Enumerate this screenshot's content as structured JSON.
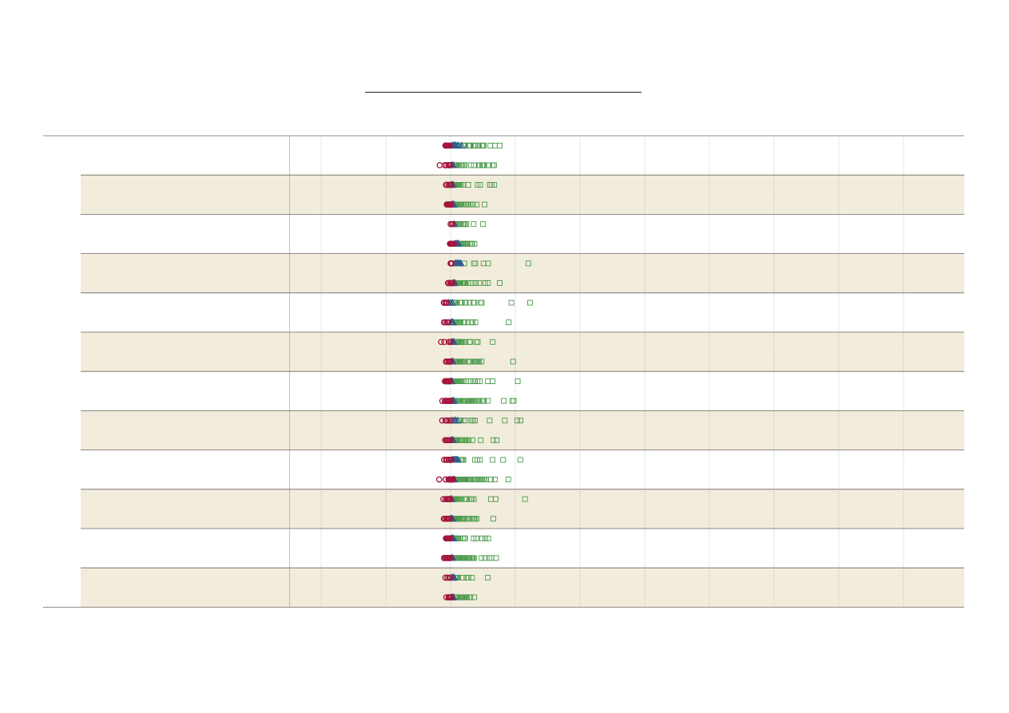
{
  "chart_data": {
    "type": "scatter",
    "title": "",
    "xlabel": "",
    "ylabel": "",
    "grid": true,
    "legend": "none",
    "colors": {
      "circle": "#a3173d",
      "triangle": "#2d5f8c",
      "square": "#4c9a4c",
      "band": "#f2ecdc",
      "rule": "#6b655e",
      "grid": "#9a9a9a"
    },
    "groups": [
      {
        "shaded": false,
        "rows": [
          {
            "circles": [
              -4.0,
              -3.5,
              -3.2,
              -3.0,
              -2.6,
              -2.2,
              -1.7,
              -1.2,
              -0.6
            ],
            "triangles": [
              1.2,
              1.8,
              2.3,
              2.9,
              3.4,
              3.9,
              4.2,
              5.4,
              6.5,
              8.6
            ],
            "squares": [
              9.5,
              10.2,
              10.9,
              13.9,
              14.6,
              15.2,
              17.8,
              18.6,
              19.5,
              21.4,
              24.3,
              24.8,
              25.6,
              30.7,
              34.2,
              38.0
            ]
          },
          {
            "circles": [
              -8.4,
              -4.5,
              -3.2,
              -1.6,
              -1.1,
              -0.6,
              0.0
            ],
            "triangles": [
              1.1,
              1.5,
              2.0
            ],
            "squares": [
              3.0,
              3.4,
              3.8,
              4.3,
              4.7,
              5.4,
              6.2,
              8.3,
              9.1,
              10.1,
              11.1,
              15.9,
              18.0,
              22.0,
              22.6,
              24.4,
              25.1,
              26.1,
              29.2,
              32.5,
              33.6
            ]
          }
        ]
      },
      {
        "shaded": true,
        "rows": [
          {
            "circles": [
              -3.5,
              -3.0,
              -1.5,
              -0.6,
              0.0,
              0.6
            ],
            "triangles": [
              1.0,
              1.5,
              2.0
            ],
            "squares": [
              3.0,
              3.5,
              4.0,
              4.6,
              5.2,
              5.8,
              6.4,
              7.0,
              8.0,
              9.6,
              13.7,
              20.9,
              22.9,
              30.3,
              31.7,
              33.7
            ]
          },
          {
            "circles": [
              -3.0,
              -2.2,
              -1.6,
              -0.9,
              -0.4,
              0.0,
              0.5
            ],
            "triangles": [
              1.1,
              1.6,
              2.0,
              2.6
            ],
            "squares": [
              3.4,
              3.9,
              4.5,
              5.1,
              5.7,
              6.4,
              7.0,
              7.7,
              8.4,
              9.3,
              10.4,
              12.0,
              13.0,
              13.9,
              15.3,
              17.4,
              20.2,
              26.2
            ]
          }
        ]
      },
      {
        "shaded": false,
        "rows": [
          {
            "circles": [
              0.0,
              1.0,
              2.0
            ],
            "triangles": [
              2.8
            ],
            "squares": [
              3.6,
              4.1,
              4.8,
              5.5,
              6.1,
              6.8,
              7.5,
              9.6,
              10.4,
              11.2,
              12.2,
              17.8,
              25.1
            ]
          },
          {
            "circles": [
              -0.5,
              0.0,
              0.7,
              1.2,
              1.8,
              2.3,
              2.7
            ],
            "triangles": [
              3.5,
              4.0,
              4.5,
              5.1,
              5.7,
              6.2
            ],
            "squares": [
              6.8,
              7.4,
              8.0,
              8.8,
              9.6,
              10.3,
              11.0,
              11.8,
              12.5,
              13.2,
              15.0,
              16.2,
              16.7,
              18.5
            ]
          }
        ]
      },
      {
        "shaded": true,
        "rows": [
          {
            "circles": [
              0.0,
              0.5,
              1.0
            ],
            "triangles": [
              3.3,
              4.0,
              4.7,
              5.4,
              6.1,
              6.8,
              7.5,
              8.0
            ],
            "squares": [
              10.7,
              18.0,
              19.2,
              25.5,
              29.0,
              60.1
            ]
          },
          {
            "circles": [
              -2.0,
              -1.5,
              -0.2,
              0.4,
              1.2,
              1.7
            ],
            "triangles": [
              2.2,
              2.8,
              3.4
            ],
            "squares": [
              4.0,
              4.5,
              5.1,
              5.7,
              6.2,
              6.8,
              7.4,
              8.8,
              9.5,
              10.2,
              10.8,
              11.5,
              13.5,
              15.5,
              17.2,
              19.5,
              22.2,
              26.7,
              28.9,
              38.0
            ]
          }
        ]
      },
      {
        "shaded": false,
        "rows": [
          {
            "circles": [
              -5.2,
              -4.8,
              -3.6,
              -3.2,
              -2.8
            ],
            "triangles": [
              -1.5,
              0.0,
              1.5
            ],
            "squares": [
              2.0,
              2.6,
              3.2,
              3.8,
              4.4,
              7.4,
              8.1,
              8.8,
              11.0,
              11.8,
              14.7,
              17.6,
              18.4,
              23.2,
              24.1,
              47.0,
              61.4
            ]
          },
          {
            "circles": [
              -5.1,
              -4.1,
              -2.7,
              -2.2,
              -1.6
            ],
            "triangles": [
              0.3,
              0.9,
              1.4,
              1.9
            ],
            "squares": [
              2.9,
              3.6,
              4.2,
              4.8,
              5.5,
              6.1,
              7.2,
              7.8,
              10.1,
              10.8,
              13.5,
              16.1,
              17.1,
              19.2,
              44.9
            ]
          }
        ]
      },
      {
        "shaded": true,
        "rows": [
          {
            "circles": [
              -7.3,
              -4.8,
              -1.4,
              0.0,
              0.4
            ],
            "triangles": [
              1.0,
              1.5,
              2.0,
              2.6
            ],
            "squares": [
              4.5,
              5.1,
              5.8,
              6.4,
              7.0,
              7.7,
              8.4,
              9.1,
              10.1,
              11.4,
              14.7,
              15.2,
              19.9,
              21.0,
              32.5
            ]
          },
          {
            "circles": [
              -3.6,
              -2.6,
              -1.4,
              -0.6,
              0.0
            ],
            "triangles": [
              0.8,
              1.4,
              1.9
            ],
            "squares": [
              3.9,
              4.5,
              5.1,
              5.8,
              6.4,
              7.1,
              7.7,
              8.5,
              9.2,
              10.2,
              13.5,
              14.3,
              15.1,
              18.5,
              19.1,
              19.8,
              20.5,
              21.2,
              22.1,
              23.9,
              48.3
            ]
          }
        ]
      },
      {
        "shaded": false,
        "rows": [
          {
            "circles": [
              -4.4,
              -3.6,
              -3.0,
              -2.4,
              -1.8,
              -1.2,
              -0.6
            ],
            "triangles": [
              0.5,
              1.1
            ],
            "squares": [
              1.8,
              2.4,
              3.0,
              3.6,
              4.2,
              4.8,
              5.4,
              6.0,
              6.6,
              7.4,
              8.1,
              9.3,
              10.4,
              12.0,
              15.6,
              17.4,
              18.6,
              20.8,
              22.7,
              28.8,
              32.5,
              51.9
            ]
          },
          {
            "circles": [
              -6.4,
              -4.5,
              -3.6,
              -3.0,
              -2.2,
              -1.4,
              -0.6,
              0.0
            ],
            "triangles": [
              0.9,
              1.5,
              2.0,
              2.6
            ],
            "squares": [
              3.2,
              3.8,
              4.4,
              5.0,
              5.6,
              6.2,
              6.8,
              7.4,
              9.5,
              10.2,
              10.9,
              11.6,
              12.4,
              13.2,
              13.9,
              14.7,
              15.5,
              16.3,
              17.1,
              17.9,
              18.6,
              19.5,
              20.8,
              22.4,
              24.2,
              25.0,
              25.8,
              28.9,
              41.1,
              47.6,
              48.8
            ]
          }
        ]
      },
      {
        "shaded": true,
        "rows": [
          {
            "circles": [
              -6.5,
              -3.9,
              -3.4,
              -2.9,
              -1.4,
              0.0
            ],
            "triangles": [
              0.9,
              2.3,
              3.4,
              3.9,
              5.4
            ],
            "squares": [
              6.2,
              6.8,
              7.3,
              9.9,
              11.6,
              16.2,
              17.5,
              18.8,
              30.2,
              41.9,
              51.6,
              54.1
            ]
          },
          {
            "circles": [
              -4.2,
              -3.8,
              -2.8,
              -2.2,
              -1.6,
              -0.6,
              0.0
            ],
            "triangles": [
              0.5,
              1.0,
              1.5,
              2.1
            ],
            "squares": [
              2.7,
              3.2,
              3.8,
              4.3,
              4.9,
              5.4,
              6.0,
              7.2,
              9.0,
              9.8,
              11.0,
              11.6,
              12.3,
              14.0,
              16.9,
              23.3,
              33.1,
              35.6
            ]
          }
        ]
      },
      {
        "shaded": false,
        "rows": [
          {
            "circles": [
              -5.0,
              -3.4,
              -2.8,
              -1.5,
              -1.0,
              0.0,
              0.6
            ],
            "triangles": [
              1.1,
              1.7,
              2.3,
              2.9,
              3.4,
              4.0,
              4.6,
              5.1,
              5.6
            ],
            "squares": [
              7.9,
              8.5,
              9.2,
              10.0,
              18.8,
              20.8,
              22.7,
              32.5,
              40.6,
              53.9
            ]
          },
          {
            "circles": [
              -8.8,
              -3.8,
              -1.6,
              -1.2,
              -0.8,
              0.0,
              0.5,
              1.0,
              1.5,
              2.0
            ],
            "triangles": [
              2.5,
              3.0
            ],
            "squares": [
              3.6,
              4.2,
              4.8,
              5.4,
              6.0,
              6.6,
              7.2,
              7.8,
              8.4,
              9.0,
              9.6,
              10.3,
              11.0,
              11.6,
              12.3,
              13.0,
              13.8,
              14.5,
              15.2,
              16.0,
              18.2,
              18.8,
              20.3,
              21.1,
              22.6,
              23.4,
              24.4,
              25.4,
              26.3,
              27.4,
              31.2,
              34.2,
              44.6
            ]
          }
        ]
      },
      {
        "shaded": true,
        "rows": [
          {
            "circles": [
              -5.6,
              -3.9,
              -2.8,
              -2.0,
              -1.4,
              -0.8,
              0.0
            ],
            "triangles": [
              0.5,
              1.0
            ],
            "squares": [
              1.6,
              2.2,
              2.8,
              3.4,
              4.0,
              4.6,
              5.2,
              5.8,
              6.6,
              7.6,
              10.8,
              11.6,
              12.4,
              15.6,
              16.5,
              18.0,
              31.1,
              34.9,
              57.5
            ]
          },
          {
            "circles": [
              -5.2,
              -4.4,
              -3.2,
              -2.6,
              -1.9,
              -1.2,
              -0.6
            ],
            "triangles": [
              0.0,
              0.5,
              1.0,
              1.6
            ],
            "squares": [
              2.2,
              2.8,
              3.4,
              4.0,
              4.6,
              5.2,
              5.8,
              6.4,
              7.0,
              7.6,
              8.8,
              9.4,
              10.0,
              11.5,
              12.5,
              13.4,
              14.2,
              17.3,
              18.1,
              19.0,
              20.1,
              33.0
            ]
          }
        ]
      },
      {
        "shaded": false,
        "rows": [
          {
            "circles": [
              -3.6,
              -3.0,
              -2.4,
              -1.8,
              -1.2,
              -0.4,
              0.0
            ],
            "triangles": [
              0.6,
              1.1,
              1.6,
              2.3
            ],
            "squares": [
              2.8,
              3.3,
              4.0,
              4.7,
              5.3,
              6.0,
              9.4,
              10.7,
              11.2,
              17.8,
              19.8,
              24.3,
              26.8,
              29.1
            ]
          },
          {
            "circles": [
              -5.1,
              -4.8,
              -3.8,
              -3.0,
              -2.4,
              -1.8,
              -1.2,
              -0.6,
              0.0
            ],
            "triangles": [
              0.6,
              1.2,
              1.8
            ],
            "squares": [
              2.6,
              3.3,
              3.9,
              4.5,
              5.1,
              5.7,
              6.3,
              6.9,
              7.5,
              8.3,
              8.9,
              9.5,
              10.4,
              11.1,
              11.8,
              12.9,
              13.8,
              14.6,
              15.4,
              16.3,
              16.7,
              17.4,
              18.1,
              23.9,
              26.5,
              29.8,
              31.6,
              35.2
            ]
          }
        ]
      },
      {
        "shaded": true,
        "rows": [
          {
            "circles": [
              -4.0,
              -2.4,
              -1.0,
              -0.2
            ],
            "triangles": [
              1.0,
              1.6,
              2.3,
              2.8
            ],
            "squares": [
              3.4,
              4.0,
              4.7,
              5.3,
              5.9,
              9.4,
              12.2,
              13.8,
              16.6,
              28.8
            ]
          },
          {
            "circles": [
              -3.3,
              -1.6,
              -1.0,
              -0.4,
              0.0,
              0.6
            ],
            "triangles": [
              1.1,
              1.7,
              2.4
            ],
            "squares": [
              3.0,
              3.7,
              4.3,
              4.9,
              5.4,
              7.3,
              8.0,
              8.8,
              9.5,
              10.2,
              11.0,
              12.2,
              12.8,
              14.5,
              15.3,
              18.3
            ]
          }
        ]
      }
    ]
  }
}
